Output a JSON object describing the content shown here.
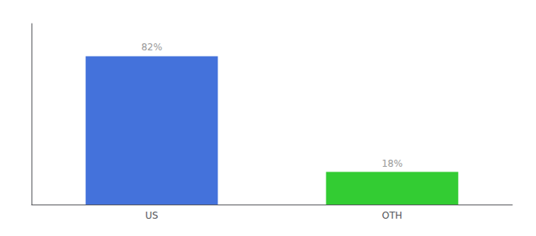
{
  "chart_data": {
    "type": "bar",
    "categories": [
      "US",
      "OTH"
    ],
    "values": [
      82,
      18
    ],
    "value_labels": [
      "82%",
      "18%"
    ],
    "colors": [
      "#4472db",
      "#33cc33"
    ],
    "ylim": [
      0,
      100
    ],
    "yticks": [],
    "grid": false,
    "data_labels": true,
    "tick_labels": "x"
  }
}
